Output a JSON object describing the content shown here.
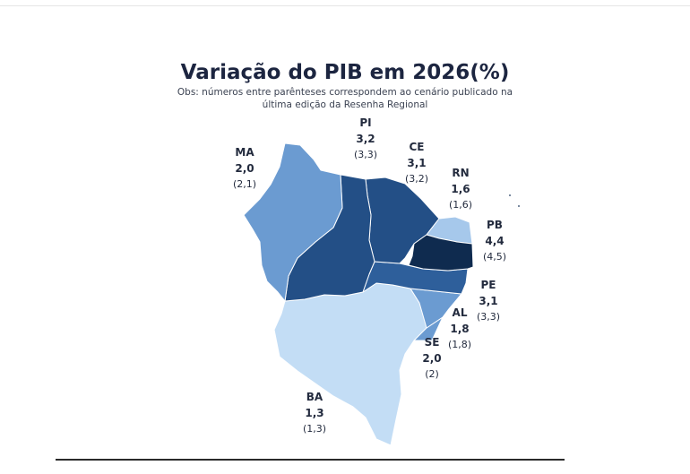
{
  "title": "Variação do PIB em 2026(%)",
  "subtitle_line1": "Obs: números entre parênteses correspondem ao cenário publicado na",
  "subtitle_line2": "última edição da Resenha Regional",
  "colors": {
    "MA": "#6b9bd1",
    "PI": "#234f86",
    "CE": "#234f86",
    "RN": "#a6c8eb",
    "PB": "#0f2b4f",
    "PE": "#2e5f9b",
    "AL": "#6b9bd1",
    "SE": "#6b9bd1",
    "BA": "#c3ddf5"
  },
  "states": {
    "MA": {
      "code": "MA",
      "value": "2,0",
      "prev": "(2,1)"
    },
    "PI": {
      "code": "PI",
      "value": "3,2",
      "prev": "(3,3)"
    },
    "CE": {
      "code": "CE",
      "value": "3,1",
      "prev": "(3,2)"
    },
    "RN": {
      "code": "RN",
      "value": "1,6",
      "prev": "(1,6)"
    },
    "PB": {
      "code": "PB",
      "value": "4,4",
      "prev": "(4,5)"
    },
    "PE": {
      "code": "PE",
      "value": "3,1",
      "prev": "(3,3)"
    },
    "AL": {
      "code": "AL",
      "value": "1,8",
      "prev": "(1,8)"
    },
    "SE": {
      "code": "SE",
      "value": "2,0",
      "prev": "(2)"
    },
    "BA": {
      "code": "BA",
      "value": "1,3",
      "prev": "(1,3)"
    }
  }
}
